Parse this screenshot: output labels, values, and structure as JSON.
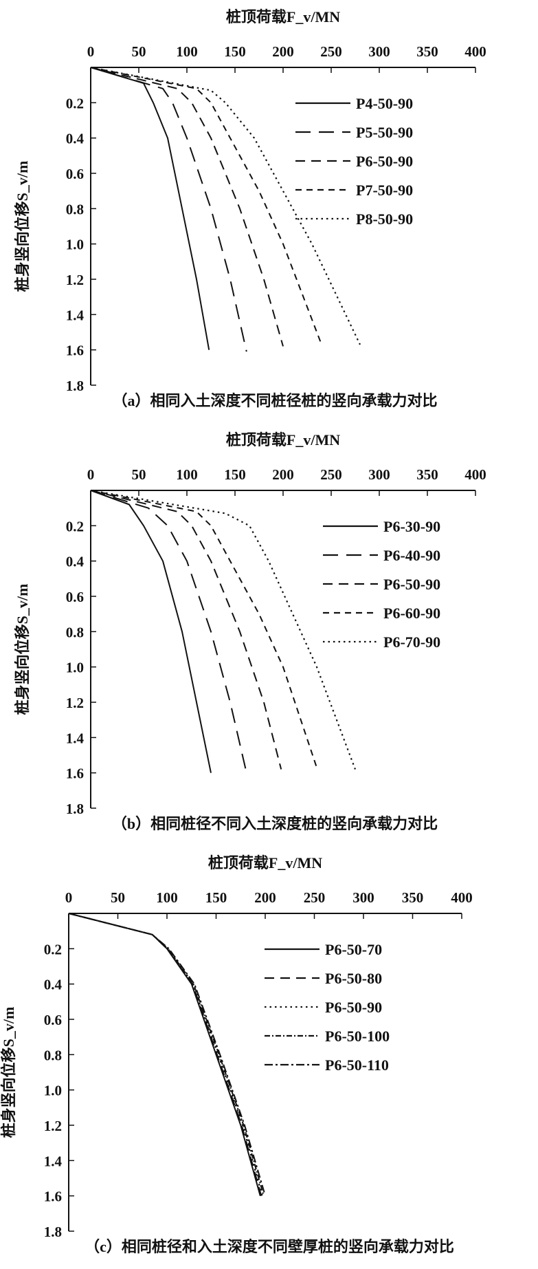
{
  "chart_data": [
    {
      "type": "line",
      "panel": "a",
      "title": "桩顶荷载F_v/MN",
      "xlabel": "桩顶荷载F_v/MN",
      "ylabel": "桩身竖向位移S_v/m",
      "caption": "（a）相同入土深度不同桩径桩的竖向承载力对比",
      "xlim": [
        0,
        400
      ],
      "ylim": [
        0,
        1.8
      ],
      "xticks": [
        "0",
        "50",
        "100",
        "150",
        "200",
        "250",
        "300",
        "350",
        "400"
      ],
      "yticks": [
        "0.2",
        "0.4",
        "0.6",
        "0.8",
        "1.0",
        "1.2",
        "1.4",
        "1.6",
        "1.8"
      ],
      "legend_position": "top-right",
      "series": [
        {
          "name": "P4-50-90",
          "style": "solid",
          "x": [
            0,
            55,
            65,
            80,
            95,
            110,
            123
          ],
          "y": [
            0,
            0.09,
            0.2,
            0.4,
            0.8,
            1.2,
            1.6
          ]
        },
        {
          "name": "P5-50-90",
          "style": "longdash",
          "x": [
            0,
            75,
            85,
            100,
            125,
            145,
            162
          ],
          "y": [
            0,
            0.12,
            0.2,
            0.4,
            0.8,
            1.2,
            1.61
          ]
        },
        {
          "name": "P6-50-90",
          "style": "dash",
          "x": [
            0,
            90,
            105,
            125,
            155,
            180,
            200
          ],
          "y": [
            0,
            0.12,
            0.2,
            0.4,
            0.8,
            1.2,
            1.58
          ]
        },
        {
          "name": "P7-50-90",
          "style": "shortdash",
          "x": [
            0,
            110,
            125,
            145,
            175,
            200,
            240
          ],
          "y": [
            0,
            0.12,
            0.2,
            0.4,
            0.7,
            1.0,
            1.57
          ]
        },
        {
          "name": "P8-50-90",
          "style": "dot",
          "x": [
            0,
            125,
            140,
            170,
            200,
            230,
            280
          ],
          "y": [
            0,
            0.13,
            0.2,
            0.4,
            0.7,
            1.0,
            1.57
          ]
        }
      ]
    },
    {
      "type": "line",
      "panel": "b",
      "title": "桩顶荷载F_v/MN",
      "xlabel": "桩顶荷载F_v/MN",
      "ylabel": "桩身竖向位移S_v/m",
      "caption": "（b）相同桩径不同入土深度桩的竖向承载力对比",
      "xlim": [
        0,
        400
      ],
      "ylim": [
        0,
        1.8
      ],
      "xticks": [
        "0",
        "50",
        "100",
        "150",
        "200",
        "250",
        "300",
        "350",
        "400"
      ],
      "yticks": [
        "0.2",
        "0.4",
        "0.6",
        "0.8",
        "1.0",
        "1.2",
        "1.4",
        "1.6",
        "1.8"
      ],
      "legend_position": "top-right",
      "series": [
        {
          "name": "P6-30-90",
          "style": "solid",
          "x": [
            0,
            40,
            55,
            75,
            95,
            110,
            125
          ],
          "y": [
            0,
            0.08,
            0.2,
            0.4,
            0.8,
            1.2,
            1.6
          ]
        },
        {
          "name": "P6-40-90",
          "style": "longdash",
          "x": [
            0,
            60,
            80,
            100,
            125,
            145,
            162
          ],
          "y": [
            0,
            0.1,
            0.2,
            0.4,
            0.8,
            1.2,
            1.6
          ]
        },
        {
          "name": "P6-50-90",
          "style": "dash",
          "x": [
            0,
            90,
            105,
            125,
            155,
            180,
            198
          ],
          "y": [
            0,
            0.12,
            0.2,
            0.4,
            0.8,
            1.2,
            1.58
          ]
        },
        {
          "name": "P6-60-90",
          "style": "shortdash",
          "x": [
            0,
            110,
            125,
            145,
            175,
            200,
            235
          ],
          "y": [
            0,
            0.12,
            0.2,
            0.4,
            0.7,
            1.0,
            1.57
          ]
        },
        {
          "name": "P6-70-90",
          "style": "dot",
          "x": [
            0,
            140,
            165,
            185,
            210,
            235,
            275
          ],
          "y": [
            0,
            0.13,
            0.2,
            0.4,
            0.7,
            1.0,
            1.58
          ]
        }
      ]
    },
    {
      "type": "line",
      "panel": "c",
      "title": "桩顶荷载F_v/MN",
      "xlabel": "桩顶荷载F_v/MN",
      "ylabel": "桩身竖向位移S_v/m",
      "caption": "（c）相同桩径和入土深度不同壁厚桩的竖向承载力对比",
      "xlim": [
        0,
        400
      ],
      "ylim": [
        0,
        1.8
      ],
      "xticks": [
        "0",
        "50",
        "100",
        "150",
        "200",
        "250",
        "300",
        "350",
        "400"
      ],
      "yticks": [
        "0.2",
        "0.4",
        "0.6",
        "0.8",
        "1.0",
        "1.2",
        "1.4",
        "1.6",
        "1.8"
      ],
      "legend_position": "top-right",
      "series": [
        {
          "name": "P6-50-70",
          "style": "solid",
          "x": [
            0,
            85,
            100,
            125,
            150,
            175,
            195
          ],
          "y": [
            0,
            0.12,
            0.2,
            0.4,
            0.8,
            1.2,
            1.6
          ]
        },
        {
          "name": "P6-50-80",
          "style": "dash",
          "x": [
            0,
            85,
            100,
            126,
            151,
            176,
            196
          ],
          "y": [
            0,
            0.12,
            0.2,
            0.4,
            0.8,
            1.2,
            1.6
          ]
        },
        {
          "name": "P6-50-90",
          "style": "dot",
          "x": [
            0,
            85,
            101,
            126,
            152,
            177,
            197
          ],
          "y": [
            0,
            0.12,
            0.2,
            0.4,
            0.8,
            1.2,
            1.6
          ]
        },
        {
          "name": "P6-50-100",
          "style": "dashdot",
          "x": [
            0,
            85,
            101,
            127,
            153,
            178,
            198
          ],
          "y": [
            0,
            0.12,
            0.2,
            0.4,
            0.8,
            1.2,
            1.59
          ]
        },
        {
          "name": "P6-50-110",
          "style": "longdashdot",
          "x": [
            0,
            85,
            102,
            128,
            154,
            179,
            199
          ],
          "y": [
            0,
            0.12,
            0.2,
            0.4,
            0.8,
            1.2,
            1.58
          ]
        }
      ]
    }
  ]
}
